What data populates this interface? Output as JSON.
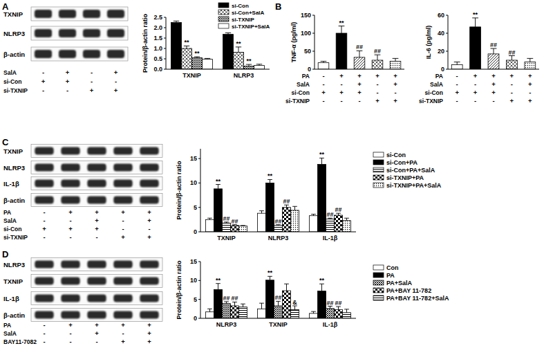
{
  "panel_labels": [
    "A",
    "B",
    "C",
    "D"
  ],
  "blots": [
    {
      "rows": [
        "TXNIP",
        "NLRP3",
        "β-actin"
      ],
      "conditions": [
        {
          "label": "SalA",
          "signs": [
            "-",
            "+",
            "-",
            "+"
          ]
        },
        {
          "label": "si-Con",
          "signs": [
            "+",
            "+",
            "-",
            "-"
          ]
        },
        {
          "label": "si-TXNIP",
          "signs": [
            "-",
            "-",
            "+",
            "+"
          ]
        }
      ]
    },
    {
      "rows": [
        "TXNIP",
        "NLRP3",
        "IL-1β",
        "β-actin"
      ],
      "conditions": [
        {
          "label": "PA",
          "signs": [
            "-",
            "+",
            "+",
            "+",
            "+"
          ]
        },
        {
          "label": "SalA",
          "signs": [
            "-",
            "-",
            "+",
            "-",
            "+"
          ]
        },
        {
          "label": "si-Con",
          "signs": [
            "+",
            "+",
            "+",
            "-",
            "-"
          ]
        },
        {
          "label": "si-TXNIP",
          "signs": [
            "-",
            "-",
            "-",
            "+",
            "+"
          ]
        }
      ]
    },
    {
      "rows": [
        "NLRP3",
        "TXNIP",
        "IL-1β",
        "β-actin"
      ],
      "conditions": [
        {
          "label": "PA",
          "signs": [
            "-",
            "+",
            "+",
            "+",
            "+"
          ]
        },
        {
          "label": "SalA",
          "signs": [
            "-",
            "-",
            "+",
            "-",
            "+"
          ]
        },
        {
          "label": "BAY11-7082",
          "signs": [
            "-",
            "-",
            "-",
            "+",
            "+"
          ]
        }
      ]
    }
  ],
  "chart_data": [
    {
      "type": "bar",
      "ylabel": "Protein/β-actin ratio",
      "categories": [
        "TXNIP",
        "NLRP3"
      ],
      "ylim": [
        0,
        2.5
      ],
      "yticks": [
        {
          "value": 0,
          "label": "0.0"
        },
        {
          "value": 0.5,
          "label": "0.5"
        },
        {
          "value": 1,
          "label": "1.0"
        },
        {
          "value": 1.5,
          "label": "1.5"
        },
        {
          "value": 2,
          "label": "2.0"
        },
        {
          "value": 2.5,
          "label": "2.5"
        }
      ],
      "legend": "upper right",
      "series": [
        {
          "name": "si-Con",
          "color": "#000000",
          "values": [
            2.25,
            1.68
          ],
          "errors": [
            0.07,
            0.07
          ],
          "annotations": [
            null,
            null
          ]
        },
        {
          "name": "si-Con+SalA",
          "color": "#000000",
          "values": [
            1.0,
            0.82
          ],
          "errors": [
            0.12,
            0.25
          ],
          "annotations": [
            "**",
            "**"
          ]
        },
        {
          "name": "si-TXNIP",
          "color": "#000000",
          "values": [
            0.55,
            0.15
          ],
          "errors": [
            0.05,
            0.08
          ],
          "annotations": [
            "**",
            "**"
          ]
        },
        {
          "name": "si-TXNIP+SalA",
          "color": "#ffffff",
          "values": [
            0.48,
            0.18
          ],
          "errors": [
            0.04,
            0.06
          ],
          "annotations": [
            null,
            null
          ]
        }
      ]
    },
    {
      "type": "bar",
      "ylabel": "TNF-α (pg/ml)",
      "categories": [
        null,
        null,
        null,
        null,
        null
      ],
      "ylim": [
        0,
        150
      ],
      "yticks": [
        0,
        50,
        100,
        150
      ],
      "tick_labels": "y",
      "values": [
        18,
        100,
        33,
        25,
        22
      ],
      "errors": [
        4,
        20,
        18,
        15,
        8
      ],
      "annotations": [
        null,
        "**",
        "##",
        "##",
        null
      ],
      "colors": [
        "#ffffff",
        "#000000",
        "#000000",
        "#000000",
        "#000000"
      ],
      "conditions": [
        {
          "label": "PA",
          "signs": [
            "-",
            "+",
            "+",
            "+",
            "+"
          ]
        },
        {
          "label": "SalA",
          "signs": [
            "-",
            "-",
            "+",
            "-",
            "+"
          ]
        },
        {
          "label": "si-Con",
          "signs": [
            "+",
            "+",
            "+",
            "-",
            "-"
          ]
        },
        {
          "label": "si-TXNIP",
          "signs": [
            "-",
            "-",
            "-",
            "+",
            "+"
          ]
        }
      ]
    },
    {
      "type": "bar",
      "ylabel": "IL-6 (pg/ml)",
      "categories": [
        null,
        null,
        null,
        null,
        null
      ],
      "ylim": [
        0,
        60
      ],
      "yticks": [
        0,
        20,
        40,
        60
      ],
      "tick_labels": "y",
      "values": [
        5,
        47,
        17,
        10,
        8
      ],
      "errors": [
        3,
        10,
        6,
        5,
        4
      ],
      "annotations": [
        null,
        "**",
        "##",
        "##",
        null
      ],
      "colors": [
        "#ffffff",
        "#000000",
        "#000000",
        "#000000",
        "#000000"
      ],
      "conditions": [
        {
          "label": "PA",
          "signs": [
            "-",
            "+",
            "+",
            "+",
            "+"
          ]
        },
        {
          "label": "SalA",
          "signs": [
            "-",
            "-",
            "+",
            "-",
            "+"
          ]
        },
        {
          "label": "si-Con",
          "signs": [
            "+",
            "+",
            "+",
            "-",
            "-"
          ]
        },
        {
          "label": "si-TXNIP",
          "signs": [
            "-",
            "-",
            "-",
            "+",
            "+"
          ]
        }
      ]
    },
    {
      "type": "bar",
      "ylabel": "Protein/β-actin ratio",
      "categories": [
        "TXNIP",
        "NLRP3",
        "IL-1β"
      ],
      "ylim": [
        0,
        17
      ],
      "yticks": [
        0,
        5,
        10,
        15
      ],
      "legend": "right",
      "series": [
        {
          "name": "si-Con",
          "color": "#ffffff",
          "values": [
            2.5,
            3.8,
            3.3
          ],
          "errors": [
            0.3,
            0.5,
            0.3
          ],
          "annotations": [
            null,
            null,
            null
          ]
        },
        {
          "name": "si-Con+PA",
          "color": "#000000",
          "values": [
            8.8,
            10.0,
            13.8
          ],
          "errors": [
            0.9,
            0.7,
            1.3
          ],
          "annotations": [
            "**",
            "**",
            "**"
          ]
        },
        {
          "name": "si-Con+PA+SalA",
          "color": "#000000",
          "values": [
            1.8,
            1.3,
            2.6
          ],
          "errors": [
            0.2,
            0.15,
            0.2
          ],
          "annotations": [
            "##",
            "##",
            "##"
          ]
        },
        {
          "name": "si-TXNIP+PA",
          "color": "#000000",
          "values": [
            1.3,
            5.0,
            3.4
          ],
          "errors": [
            0.15,
            0.5,
            0.4
          ],
          "annotations": [
            "##",
            "##",
            "##"
          ]
        },
        {
          "name": "si-TXNIP+PA+SalA",
          "color": "#000000",
          "values": [
            1.2,
            4.4,
            2.3
          ],
          "errors": [
            0.1,
            0.8,
            0.5
          ],
          "annotations": [
            null,
            null,
            null
          ]
        }
      ]
    },
    {
      "type": "bar",
      "ylabel": "Protein/β-actin ratio",
      "categories": [
        "NLRP3",
        "TXNIP",
        "IL-1β"
      ],
      "ylim": [
        0,
        15
      ],
      "yticks": [
        0,
        5,
        10,
        15
      ],
      "legend": "right",
      "series": [
        {
          "name": "Con",
          "color": "#ffffff",
          "values": [
            1.7,
            2.5,
            1.3
          ],
          "errors": [
            0.8,
            1.5,
            0.5
          ],
          "annotations": [
            null,
            null,
            null
          ]
        },
        {
          "name": "PA",
          "color": "#000000",
          "values": [
            7.6,
            10.1,
            7.2
          ],
          "errors": [
            1.6,
            1.0,
            1.9
          ],
          "annotations": [
            "**",
            "**",
            "**"
          ]
        },
        {
          "name": "PA+SalA",
          "color": "#000000",
          "values": [
            3.9,
            3.3,
            2.6
          ],
          "errors": [
            0.5,
            1.2,
            0.6
          ],
          "annotations": [
            "##",
            "##",
            "##"
          ]
        },
        {
          "name": "PA+BAY 11-782",
          "color": "#000000",
          "values": [
            3.3,
            7.3,
            2.3
          ],
          "errors": [
            1.0,
            1.8,
            0.8
          ],
          "annotations": [
            "##",
            null,
            "##"
          ]
        },
        {
          "name": "PA+BAY 11-782+SalA",
          "color": "#000000",
          "values": [
            3.0,
            2.3,
            1.5
          ],
          "errors": [
            0.8,
            1.0,
            0.9
          ],
          "annotations": [
            null,
            "&",
            null
          ]
        }
      ]
    }
  ]
}
